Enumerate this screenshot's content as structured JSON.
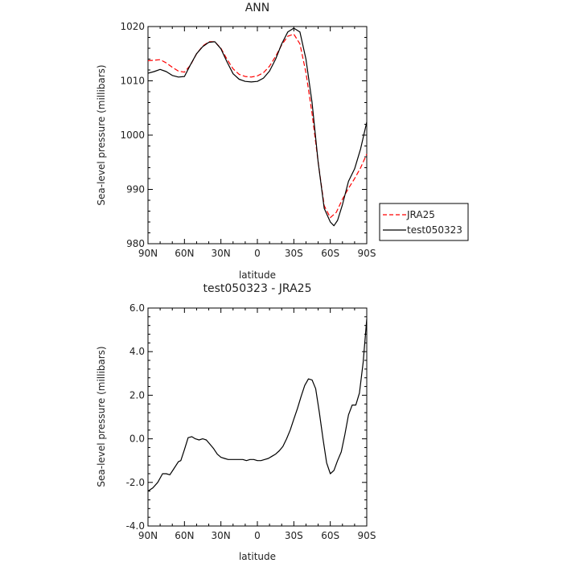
{
  "chart_data": [
    {
      "type": "line",
      "title": "ANN",
      "xlabel": "latitude",
      "ylabel": "Sea-level pressure (millibars)",
      "xlim": [
        90,
        -90
      ],
      "ylim": [
        980,
        1020
      ],
      "xticks": [
        90,
        60,
        30,
        0,
        -30,
        -60,
        -90
      ],
      "xtick_labels": [
        "90N",
        "60N",
        "30N",
        "0",
        "30S",
        "60S",
        "90S"
      ],
      "yticks": [
        980,
        990,
        1000,
        1010,
        1020
      ],
      "ytick_labels": [
        "980",
        "990",
        "1000",
        "1010",
        "1020"
      ],
      "legend_position": "right",
      "series": [
        {
          "name": "JRA25",
          "color": "#ff0000",
          "style": "dashed",
          "x": [
            90,
            85,
            80,
            75,
            70,
            65,
            60,
            55,
            50,
            45,
            40,
            35,
            30,
            25,
            20,
            15,
            10,
            5,
            0,
            -5,
            -10,
            -15,
            -20,
            -25,
            -30,
            -35,
            -40,
            -45,
            -50,
            -55,
            -60,
            -65,
            -70,
            -75,
            -80,
            -85,
            -90
          ],
          "y": [
            1013.7,
            1013.8,
            1013.9,
            1013.3,
            1012.5,
            1011.8,
            1011.6,
            1012.9,
            1015.0,
            1016.4,
            1017.2,
            1017.2,
            1016.0,
            1014.0,
            1012.2,
            1011.2,
            1010.8,
            1010.7,
            1010.9,
            1011.5,
            1012.7,
            1014.5,
            1016.6,
            1018.2,
            1018.6,
            1016.8,
            1011.5,
            1004.0,
            995.0,
            987.0,
            984.8,
            985.8,
            988.2,
            990.2,
            992.0,
            994.0,
            996.5
          ]
        },
        {
          "name": "test050323",
          "color": "#000000",
          "style": "solid",
          "x": [
            90,
            85,
            80,
            75,
            70,
            65,
            60,
            55,
            50,
            45,
            40,
            35,
            30,
            25,
            20,
            15,
            10,
            5,
            0,
            -5,
            -10,
            -15,
            -20,
            -25,
            -30,
            -35,
            -40,
            -45,
            -50,
            -55,
            -60,
            -63,
            -66,
            -70,
            -75,
            -80,
            -85,
            -90
          ],
          "y": [
            1011.4,
            1011.7,
            1012.1,
            1011.7,
            1011.0,
            1010.7,
            1010.8,
            1013.0,
            1015.0,
            1016.3,
            1017.1,
            1017.2,
            1015.9,
            1013.5,
            1011.3,
            1010.3,
            1009.9,
            1009.8,
            1009.9,
            1010.5,
            1011.8,
            1014.0,
            1016.8,
            1019.0,
            1019.7,
            1019.0,
            1014.0,
            1006.0,
            995.0,
            986.5,
            984.0,
            983.3,
            984.3,
            987.2,
            991.5,
            993.8,
            997.5,
            1002.4
          ]
        }
      ]
    },
    {
      "type": "line",
      "title": "test050323 - JRA25",
      "xlabel": "latitude",
      "ylabel": "Sea-level pressure (millibars)",
      "xlim": [
        90,
        -90
      ],
      "ylim": [
        -4,
        6
      ],
      "xticks": [
        90,
        60,
        30,
        0,
        -30,
        -60,
        -90
      ],
      "xtick_labels": [
        "90N",
        "60N",
        "30N",
        "0",
        "30S",
        "60S",
        "90S"
      ],
      "yticks": [
        -4,
        -2,
        0,
        2,
        4,
        6
      ],
      "ytick_labels": [
        "-4.0",
        "-2.0",
        "0.0",
        "2.0",
        "4.0",
        "6.0"
      ],
      "series": [
        {
          "color": "#000000",
          "style": "solid",
          "x": [
            90,
            86,
            82,
            78,
            75,
            72,
            69,
            65,
            63,
            60,
            57,
            54,
            51,
            48,
            45,
            42,
            39,
            36,
            33,
            30,
            27,
            24,
            21,
            18,
            15,
            12,
            9,
            6,
            3,
            0,
            -3,
            -6,
            -9,
            -12,
            -15,
            -18,
            -21,
            -24,
            -27,
            -30,
            -33,
            -36,
            -39,
            -42,
            -45,
            -48,
            -51,
            -54,
            -57,
            -60,
            -63,
            -66,
            -69,
            -72,
            -75,
            -78,
            -81,
            -84,
            -87,
            -90
          ],
          "y": [
            -2.4,
            -2.25,
            -2.0,
            -1.6,
            -1.6,
            -1.65,
            -1.4,
            -1.05,
            -1.0,
            -0.5,
            0.05,
            0.1,
            0.0,
            -0.05,
            0.0,
            -0.05,
            -0.25,
            -0.45,
            -0.7,
            -0.85,
            -0.9,
            -0.95,
            -0.95,
            -0.95,
            -0.95,
            -0.95,
            -1.0,
            -0.95,
            -0.95,
            -1.0,
            -1.0,
            -0.95,
            -0.9,
            -0.8,
            -0.7,
            -0.55,
            -0.35,
            0.0,
            0.4,
            0.9,
            1.4,
            1.95,
            2.45,
            2.75,
            2.7,
            2.3,
            1.2,
            0.0,
            -1.1,
            -1.6,
            -1.45,
            -1.0,
            -0.6,
            0.2,
            1.1,
            1.55,
            1.55,
            2.1,
            3.5,
            5.5
          ]
        }
      ]
    }
  ]
}
